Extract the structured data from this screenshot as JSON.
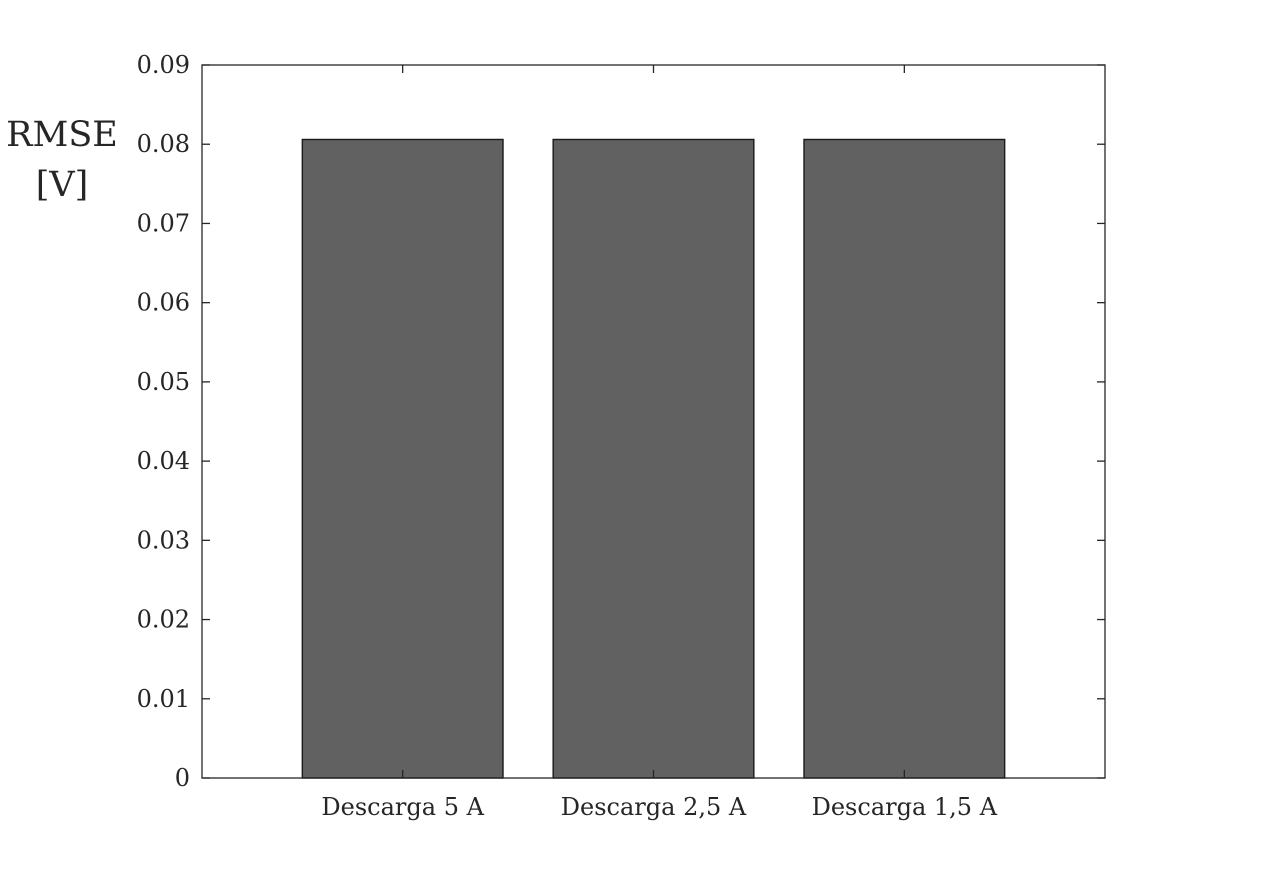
{
  "chart_data": {
    "type": "bar",
    "title": "",
    "xlabel": "",
    "ylabel_lines": [
      "RMSE",
      "[V]"
    ],
    "categories": [
      "Descarga 5 A",
      "Descarga 2,5 A",
      "Descarga 1,5 A"
    ],
    "values": [
      0.0806,
      0.0806,
      0.0806
    ],
    "ylim": [
      0,
      0.09
    ],
    "xlim": [
      0.2,
      3.8
    ],
    "yticks": [
      0,
      0.01,
      0.02,
      0.03,
      0.04,
      0.05,
      0.06,
      0.07,
      0.08,
      0.09
    ],
    "ytick_labels": [
      "0",
      "0.01",
      "0.02",
      "0.03",
      "0.04",
      "0.05",
      "0.06",
      "0.07",
      "0.08",
      "0.09"
    ],
    "bar_color": "#616161",
    "grid": false,
    "legend": "none"
  }
}
